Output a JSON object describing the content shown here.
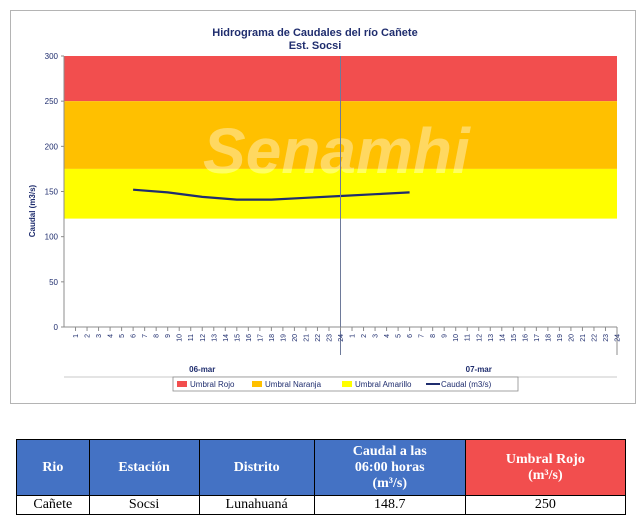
{
  "chart_data": {
    "type": "line",
    "title": "Hidrograma de Caudales  del río Cañete",
    "subtitle": "Est. Socsi",
    "ylabel": "Caudal  (m3/s)",
    "xlabel": "",
    "ylim": [
      0,
      300
    ],
    "yticks": [
      0,
      50,
      100,
      150,
      200,
      250,
      300
    ],
    "watermark": "Senamhi",
    "days": [
      "06-mar",
      "07-mar"
    ],
    "hour_ticks": [
      "1",
      "2",
      "3",
      "4",
      "5",
      "6",
      "7",
      "8",
      "9",
      "10",
      "11",
      "12",
      "13",
      "14",
      "15",
      "16",
      "17",
      "18",
      "19",
      "20",
      "21",
      "22",
      "23",
      "24"
    ],
    "thresholds": [
      {
        "name": "Umbral Rojo",
        "from": 250,
        "to": 300,
        "color": "#f24e4e"
      },
      {
        "name": "Umbral Naranja",
        "from": 175,
        "to": 250,
        "color": "#ffc000"
      },
      {
        "name": "Umbral Amarillo",
        "from": 120,
        "to": 175,
        "color": "#ffff00"
      }
    ],
    "series": [
      {
        "name": "Caudal (m3/s)",
        "color": "#1f2d6e",
        "x_hours": [
          6,
          9,
          12,
          15,
          18,
          21,
          24,
          27,
          30
        ],
        "values": [
          152,
          149,
          144,
          141,
          141,
          143,
          145,
          147,
          149
        ]
      }
    ],
    "legend": [
      "Umbral Rojo",
      "Umbral Naranja",
      "Umbral Amarillo",
      "Caudal (m3/s)"
    ],
    "legend_position": "bottom",
    "grid": false
  },
  "table": {
    "headers": [
      {
        "lines": [
          "Rio"
        ]
      },
      {
        "lines": [
          "Estación"
        ]
      },
      {
        "lines": [
          "Distrito"
        ]
      },
      {
        "lines": [
          "Caudal a las",
          "06:00 horas",
          "(m³/s)"
        ]
      },
      {
        "lines": [
          "Umbral Rojo",
          "(m³/s)"
        ]
      }
    ],
    "row": [
      "Cañete",
      "Socsi",
      "Lunahuaná",
      "148.7",
      "250"
    ]
  }
}
